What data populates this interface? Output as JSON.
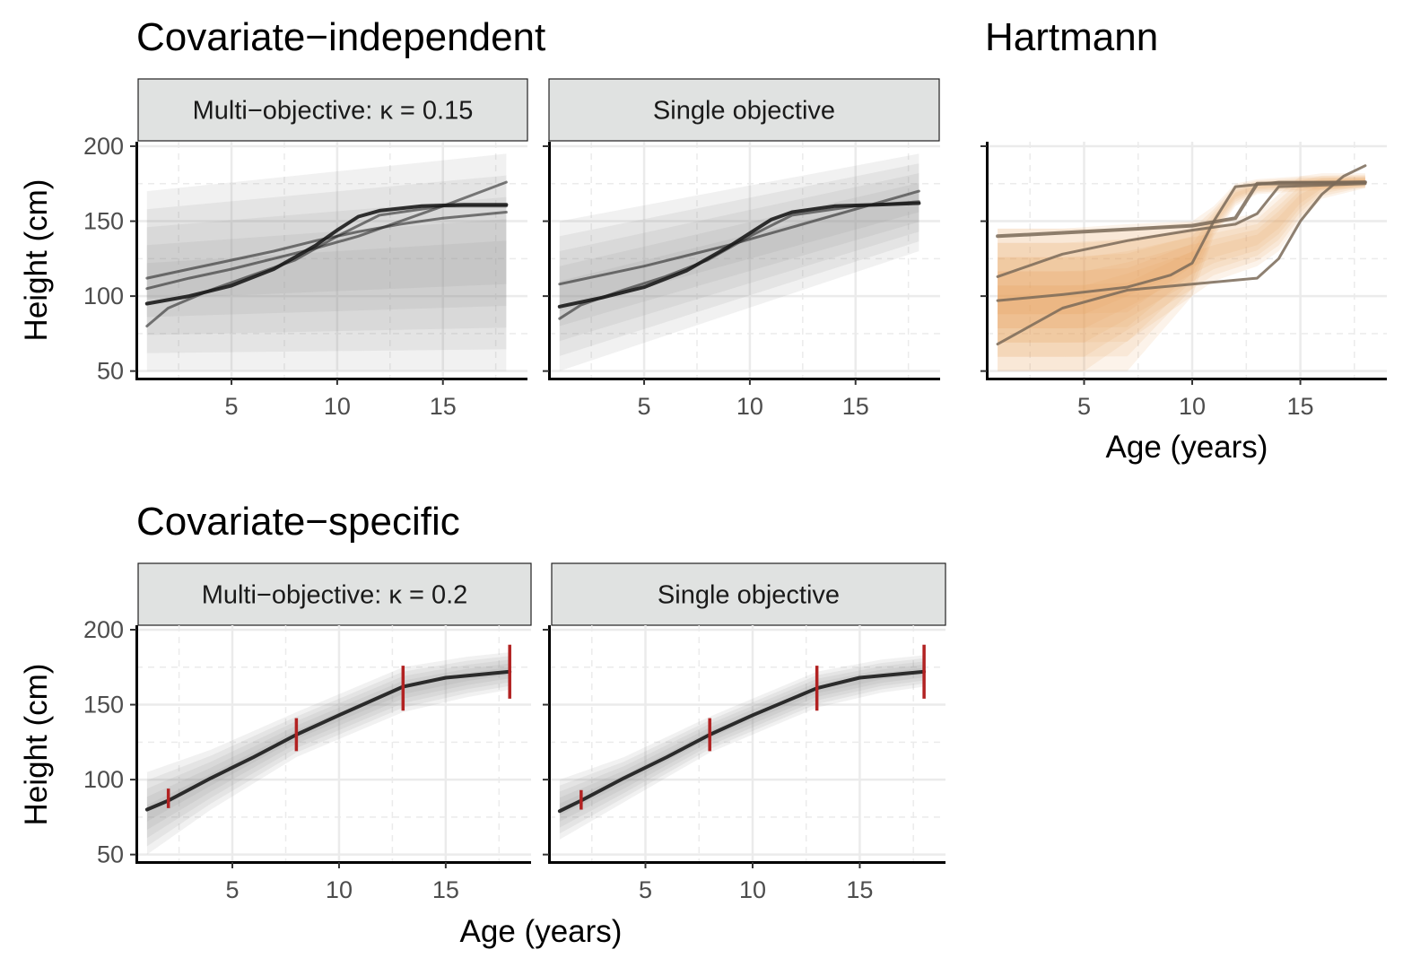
{
  "section_titles": {
    "top": "Covariate−independent",
    "right": "Hartmann",
    "bottom": "Covariate−specific"
  },
  "colors": {
    "band_gray": "#8c8c8c",
    "line_gray": "#1a1a1a",
    "band_orange": "#e8a65c",
    "line_orange": "#7a6a58",
    "marker_red": "#b22222",
    "strip_fill": "#e0e2e1",
    "grid": "#ebebeb"
  },
  "chart_data": [
    {
      "type": "line",
      "panel": "top-left",
      "strip": "Multi−objective: κ = 0.15",
      "ylabel": "Height (cm)",
      "xlabel": "",
      "xticks": [
        5,
        10,
        15
      ],
      "yticks": [
        50,
        100,
        150,
        200
      ],
      "xlim": [
        0.5,
        19
      ],
      "ylim": [
        45,
        203
      ],
      "band": {
        "x": [
          1,
          18
        ],
        "lower": [
          50,
          50
        ],
        "upper": [
          170,
          195
        ]
      },
      "series": [
        {
          "x": [
            1,
            3,
            5,
            7,
            8,
            9,
            10,
            11,
            12,
            14,
            16,
            18
          ],
          "y": [
            95,
            100,
            107,
            118,
            126,
            134,
            144,
            153,
            157,
            160,
            161,
            161
          ]
        },
        {
          "x": [
            1,
            3,
            5,
            7,
            9,
            11,
            13,
            15,
            18
          ],
          "y": [
            105,
            112,
            118,
            125,
            132,
            140,
            150,
            160,
            176
          ]
        },
        {
          "x": [
            1,
            3,
            5,
            7,
            9,
            11,
            13,
            15,
            18
          ],
          "y": [
            112,
            118,
            124,
            130,
            137,
            143,
            148,
            152,
            156
          ]
        },
        {
          "x": [
            1,
            2,
            4,
            6,
            8,
            10,
            12,
            15,
            18
          ],
          "y": [
            80,
            92,
            104,
            114,
            124,
            140,
            154,
            160,
            160
          ]
        }
      ]
    },
    {
      "type": "line",
      "panel": "top-middle",
      "strip": "Single objective",
      "ylabel": "",
      "xlabel": "",
      "xticks": [
        5,
        10,
        15
      ],
      "yticks": [],
      "xlim": [
        0.5,
        19
      ],
      "ylim": [
        45,
        203
      ],
      "band": {
        "x": [
          1,
          18
        ],
        "lower": [
          50,
          130
        ],
        "upper": [
          150,
          195
        ]
      },
      "series": [
        {
          "x": [
            1,
            3,
            5,
            7,
            8,
            9,
            10,
            11,
            12,
            14,
            16,
            18
          ],
          "y": [
            93,
            99,
            106,
            117,
            125,
            133,
            142,
            151,
            156,
            160,
            161,
            162
          ]
        },
        {
          "x": [
            1,
            3,
            5,
            7,
            9,
            11,
            13,
            15,
            18
          ],
          "y": [
            108,
            114,
            120,
            127,
            134,
            142,
            150,
            158,
            170
          ]
        },
        {
          "x": [
            1,
            2,
            4,
            6,
            8,
            10,
            12,
            15,
            18
          ],
          "y": [
            85,
            94,
            104,
            113,
            124,
            140,
            154,
            160,
            163
          ]
        }
      ]
    },
    {
      "type": "line",
      "panel": "top-right",
      "strip": "",
      "ylabel": "",
      "xlabel": "Age (years)",
      "xticks": [
        5,
        10,
        15
      ],
      "yticks": [],
      "xlim": [
        0.5,
        19
      ],
      "ylim": [
        45,
        203
      ],
      "bands": [
        {
          "x": [
            1,
            4,
            7,
            10,
            11,
            12,
            13,
            15,
            18
          ],
          "lower": [
            50,
            50,
            50,
            100,
            140,
            160,
            168,
            170,
            172
          ],
          "upper": [
            145,
            145,
            148,
            150,
            160,
            175,
            178,
            180,
            180
          ]
        },
        {
          "x": [
            1,
            3,
            5,
            7,
            9,
            11,
            13,
            14,
            15,
            16,
            18
          ],
          "lower": [
            50,
            50,
            50,
            70,
            90,
            110,
            120,
            130,
            150,
            165,
            172
          ],
          "upper": [
            145,
            145,
            145,
            145,
            148,
            150,
            155,
            168,
            180,
            182,
            182
          ]
        }
      ],
      "series": [
        {
          "x": [
            1,
            5,
            10,
            12,
            13,
            18
          ],
          "y": [
            140,
            143,
            147,
            152,
            175,
            176
          ]
        },
        {
          "x": [
            1,
            4,
            7,
            10,
            12,
            13,
            14,
            18
          ],
          "y": [
            113,
            128,
            137,
            144,
            148,
            155,
            173,
            175
          ]
        },
        {
          "x": [
            1,
            4,
            7,
            9,
            10,
            11,
            12,
            14,
            18
          ],
          "y": [
            97,
            101,
            106,
            114,
            122,
            150,
            173,
            176,
            176
          ]
        },
        {
          "x": [
            1,
            4,
            7,
            10,
            13,
            14,
            15,
            16,
            17,
            18
          ],
          "y": [
            68,
            92,
            104,
            108,
            112,
            125,
            150,
            168,
            180,
            187
          ]
        }
      ]
    },
    {
      "type": "line",
      "panel": "bottom-left",
      "strip": "Multi−objective: κ = 0.2",
      "ylabel": "Height (cm)",
      "xlabel": "",
      "xticks": [
        5,
        10,
        15
      ],
      "yticks": [
        50,
        100,
        150,
        200
      ],
      "xlim": [
        0.5,
        19
      ],
      "ylim": [
        45,
        203
      ],
      "band": {
        "x": [
          1,
          4,
          8,
          13,
          16,
          18
        ],
        "lower": [
          50,
          80,
          115,
          145,
          155,
          160
        ],
        "upper": [
          105,
          120,
          145,
          175,
          182,
          185
        ]
      },
      "series": [
        {
          "x": [
            1,
            2,
            4,
            6,
            8,
            10,
            13,
            15,
            18
          ],
          "y": [
            80,
            86,
            101,
            115,
            130,
            143,
            162,
            168,
            172
          ]
        }
      ],
      "markers": [
        {
          "x": 2,
          "low": 81,
          "high": 94
        },
        {
          "x": 8,
          "low": 119,
          "high": 141
        },
        {
          "x": 13,
          "low": 146,
          "high": 176
        },
        {
          "x": 18,
          "low": 154,
          "high": 190
        }
      ]
    },
    {
      "type": "line",
      "panel": "bottom-middle",
      "strip": "Single objective",
      "ylabel": "",
      "xlabel": "",
      "xticks": [
        5,
        10,
        15
      ],
      "yticks": [],
      "xlim": [
        0.5,
        19
      ],
      "ylim": [
        45,
        203
      ],
      "band": {
        "x": [
          1,
          4,
          8,
          13,
          16,
          18
        ],
        "lower": [
          60,
          85,
          118,
          148,
          158,
          162
        ],
        "upper": [
          100,
          115,
          142,
          172,
          180,
          183
        ]
      },
      "series": [
        {
          "x": [
            1,
            2,
            4,
            6,
            8,
            10,
            13,
            15,
            18
          ],
          "y": [
            79,
            86,
            101,
            115,
            130,
            143,
            161,
            168,
            172
          ]
        }
      ],
      "markers": [
        {
          "x": 2,
          "low": 80,
          "high": 93
        },
        {
          "x": 8,
          "low": 119,
          "high": 141
        },
        {
          "x": 13,
          "low": 146,
          "high": 176
        },
        {
          "x": 18,
          "low": 154,
          "high": 190
        }
      ]
    }
  ],
  "shared_xlabel": "Age (years)"
}
